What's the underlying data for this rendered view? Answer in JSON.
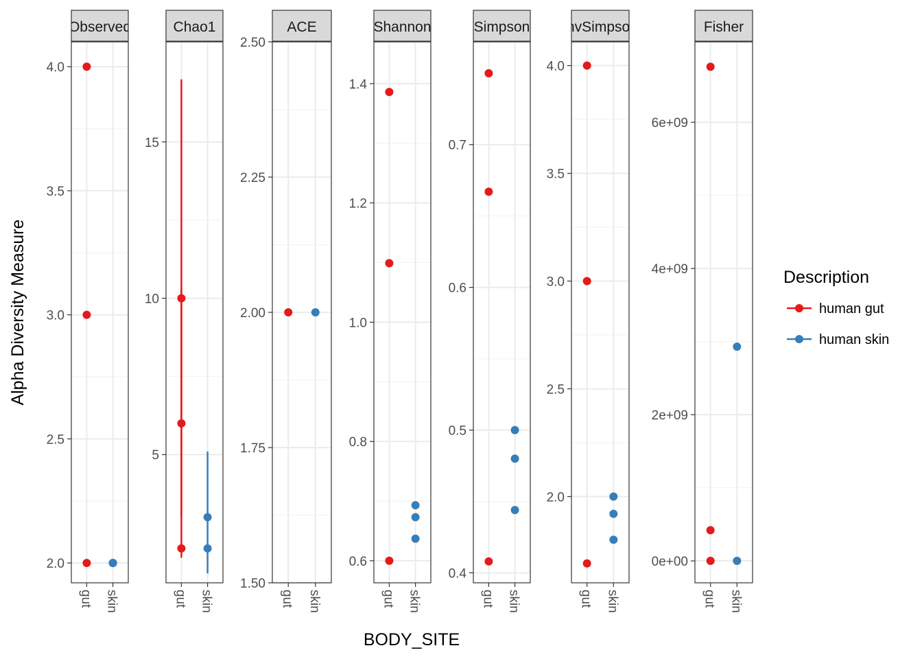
{
  "chart_data": {
    "type": "scatter",
    "ylabel": "Alpha Diversity Measure",
    "xlabel": "BODY_SITE",
    "categories": [
      "gut",
      "skin"
    ],
    "legend": {
      "title": "Description",
      "placement": "right",
      "entries": [
        {
          "name": "human gut",
          "color": "#e41a1c"
        },
        {
          "name": "human skin",
          "color": "#377eb8"
        }
      ]
    },
    "grid": true,
    "panels": [
      {
        "label": "Observed",
        "ylim": [
          1.92,
          4.1
        ],
        "yticks": [
          2.0,
          2.5,
          3.0,
          3.5,
          4.0
        ],
        "ytick_labels": [
          "2.0",
          "2.5",
          "3.0",
          "3.5",
          "4.0"
        ],
        "points": [
          {
            "x": "gut",
            "y": 4.0,
            "series": "human gut"
          },
          {
            "x": "gut",
            "y": 3.0,
            "series": "human gut"
          },
          {
            "x": "gut",
            "y": 2.0,
            "series": "human gut"
          },
          {
            "x": "skin",
            "y": 2.0,
            "series": "human skin"
          },
          {
            "x": "skin",
            "y": 2.0,
            "series": "human skin"
          },
          {
            "x": "skin",
            "y": 2.0,
            "series": "human skin"
          }
        ],
        "errorbars": []
      },
      {
        "label": "Chao1",
        "ylim": [
          0.9,
          18.2
        ],
        "yticks": [
          5,
          10,
          15
        ],
        "ytick_labels": [
          "5",
          "10",
          "15"
        ],
        "points": [
          {
            "x": "gut",
            "y": 10.0,
            "series": "human gut"
          },
          {
            "x": "gut",
            "y": 6.0,
            "series": "human gut"
          },
          {
            "x": "gut",
            "y": 2.0,
            "series": "human gut"
          },
          {
            "x": "skin",
            "y": 3.0,
            "series": "human skin"
          },
          {
            "x": "skin",
            "y": 2.0,
            "series": "human skin"
          }
        ],
        "errorbars": [
          {
            "x": "gut",
            "low": 1.7,
            "high": 17.0,
            "series": "human gut"
          },
          {
            "x": "gut",
            "low": 3.0,
            "high": 10.3,
            "series": "human gut"
          },
          {
            "x": "skin",
            "low": 1.2,
            "high": 5.1,
            "series": "human skin"
          }
        ]
      },
      {
        "label": "ACE",
        "ylim": [
          1.5,
          2.5
        ],
        "yticks": [
          1.5,
          1.75,
          2.0,
          2.25,
          2.5
        ],
        "ytick_labels": [
          "1.50",
          "1.75",
          "2.00",
          "2.25",
          "2.50"
        ],
        "points": [
          {
            "x": "gut",
            "y": 2.0,
            "series": "human gut"
          },
          {
            "x": "skin",
            "y": 2.0,
            "series": "human skin"
          }
        ],
        "errorbars": []
      },
      {
        "label": "Shannon",
        "ylim": [
          0.563,
          1.47
        ],
        "yticks": [
          0.6,
          0.8,
          1.0,
          1.2,
          1.4
        ],
        "ytick_labels": [
          "0.6",
          "0.8",
          "1.0",
          "1.2",
          "1.4"
        ],
        "points": [
          {
            "x": "gut",
            "y": 1.386,
            "series": "human gut"
          },
          {
            "x": "gut",
            "y": 1.099,
            "series": "human gut"
          },
          {
            "x": "gut",
            "y": 0.6,
            "series": "human gut"
          },
          {
            "x": "skin",
            "y": 0.693,
            "series": "human skin"
          },
          {
            "x": "skin",
            "y": 0.673,
            "series": "human skin"
          },
          {
            "x": "skin",
            "y": 0.637,
            "series": "human skin"
          }
        ],
        "errorbars": []
      },
      {
        "label": "Simpson",
        "ylim": [
          0.393,
          0.772
        ],
        "yticks": [
          0.4,
          0.5,
          0.6,
          0.7
        ],
        "ytick_labels": [
          "0.4",
          "0.5",
          "0.6",
          "0.7"
        ],
        "points": [
          {
            "x": "gut",
            "y": 0.75,
            "series": "human gut"
          },
          {
            "x": "gut",
            "y": 0.667,
            "series": "human gut"
          },
          {
            "x": "gut",
            "y": 0.408,
            "series": "human gut"
          },
          {
            "x": "skin",
            "y": 0.5,
            "series": "human skin"
          },
          {
            "x": "skin",
            "y": 0.48,
            "series": "human skin"
          },
          {
            "x": "skin",
            "y": 0.444,
            "series": "human skin"
          }
        ],
        "errorbars": []
      },
      {
        "label": "InvSimpson",
        "ylim": [
          1.6,
          4.11
        ],
        "yticks": [
          2.0,
          2.5,
          3.0,
          3.5,
          4.0
        ],
        "ytick_labels": [
          "2.0",
          "2.5",
          "3.0",
          "3.5",
          "4.0"
        ],
        "points": [
          {
            "x": "gut",
            "y": 4.0,
            "series": "human gut"
          },
          {
            "x": "gut",
            "y": 3.0,
            "series": "human gut"
          },
          {
            "x": "gut",
            "y": 1.69,
            "series": "human gut"
          },
          {
            "x": "skin",
            "y": 2.0,
            "series": "human skin"
          },
          {
            "x": "skin",
            "y": 1.92,
            "series": "human skin"
          },
          {
            "x": "skin",
            "y": 1.8,
            "series": "human skin"
          }
        ],
        "errorbars": []
      },
      {
        "label": "Fisher",
        "ylim": [
          -300000000,
          7100000000
        ],
        "yticks": [
          0,
          2000000000,
          4000000000,
          6000000000
        ],
        "ytick_labels": [
          "0e+00",
          "2e+09",
          "4e+09",
          "6e+09"
        ],
        "points": [
          {
            "x": "gut",
            "y": 6760000000,
            "series": "human gut"
          },
          {
            "x": "gut",
            "y": 420000000,
            "series": "human gut"
          },
          {
            "x": "gut",
            "y": 0,
            "series": "human gut"
          },
          {
            "x": "skin",
            "y": 2930000000,
            "series": "human skin"
          },
          {
            "x": "skin",
            "y": 0,
            "series": "human skin"
          }
        ],
        "errorbars": []
      }
    ]
  }
}
